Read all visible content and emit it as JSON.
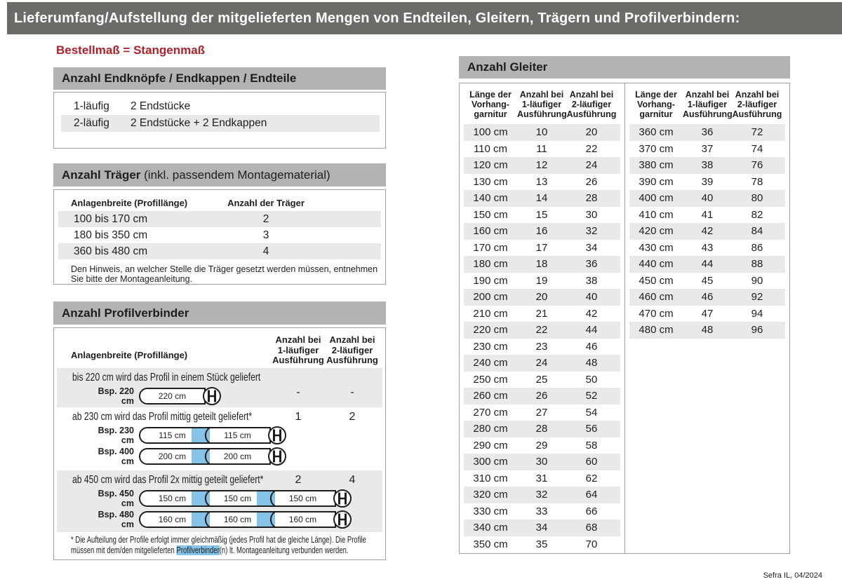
{
  "page": {
    "title": "Lieferumfang/Aufstellung der mitgelieferten Mengen von Endteilen, Gleitern, Trägern und Profilverbindern:",
    "order_note": "Bestellmaß = Stangenmaß",
    "footer": "Sefra IL, 04/2024",
    "colors": {
      "title_bar": "#6b6b68",
      "section_bar": "#b3b3b1",
      "row_stripe": "#e9e9e8",
      "accent_red": "#b11f29",
      "highlight_blue": "#85c3e9"
    }
  },
  "endteile": {
    "title": "Anzahl Endknöpfe / Endkappen / Endteile",
    "rows": [
      {
        "label": "1-läufig",
        "value": "2 Endstücke"
      },
      {
        "label": "2-läufig",
        "value": "2 Endstücke + 2 Endkappen"
      }
    ]
  },
  "traeger": {
    "title_bold": "Anzahl Träger",
    "title_normal": " (inkl. passendem Montagematerial)",
    "col_width": "Anlagenbreite (Profillänge)",
    "col_count": "Anzahl der Träger",
    "rows": [
      {
        "range": "100 bis 170 cm",
        "count": "2"
      },
      {
        "range": "180 bis 350 cm",
        "count": "3"
      },
      {
        "range": "360 bis 480 cm",
        "count": "4"
      }
    ],
    "note": "Den Hinweis, an welcher Stelle die Träger gesetzt werden müssen, entnehmen Sie bitte der Montageanleitung."
  },
  "profilverbinder": {
    "title": "Anzahl Profilverbinder",
    "col_width": "Anlagenbreite (Profillänge)",
    "col_one_run": "Anzahl bei\n1-läufiger\nAusführung",
    "col_two_run": "Anzahl bei\n2-läufiger\nAusführung",
    "rows": [
      {
        "text": "bis 220 cm wird das Profil in einem Stück geliefert",
        "one_run": "-",
        "two_run": "-",
        "examples": [
          {
            "label": "Bsp. 220 cm",
            "segments": [
              "220 cm"
            ]
          }
        ]
      },
      {
        "text": "ab 230 cm wird das Profil mittig geteilt geliefert*",
        "one_run": "1",
        "two_run": "2",
        "examples": [
          {
            "label": "Bsp. 230 cm",
            "segments": [
              "115 cm",
              "115 cm"
            ]
          },
          {
            "label": "Bsp. 400 cm",
            "segments": [
              "200 cm",
              "200 cm"
            ]
          }
        ]
      },
      {
        "text": "ab 450 cm wird das Profil 2x mittig geteilt geliefert*",
        "one_run": "2",
        "two_run": "4",
        "examples": [
          {
            "label": "Bsp. 450 cm",
            "segments": [
              "150 cm",
              "150 cm",
              "150 cm"
            ]
          },
          {
            "label": "Bsp. 480 cm",
            "segments": [
              "160 cm",
              "160 cm",
              "160 cm"
            ]
          }
        ]
      }
    ],
    "footnote_pre": "* Die Aufteilung der Profile erfolgt immer gleichmäßig (jedes Profil hat die gleiche Länge). Die Profile müssen mit dem/den mitgelieferten ",
    "footnote_highlight": "Profilverbinder",
    "footnote_post": "(n) lt. Montageanleitung verbunden werden."
  },
  "gleiter": {
    "title": "Anzahl Gleiter",
    "col_length": "Länge der\nVorhang-\ngarnitur",
    "col_one_run": "Anzahl bei\n1-läufiger\nAusführung",
    "col_two_run": "Anzahl bei\n2-läufiger\nAusführung",
    "left_rows": [
      [
        "100 cm",
        "10",
        "20"
      ],
      [
        "110 cm",
        "11",
        "22"
      ],
      [
        "120 cm",
        "12",
        "24"
      ],
      [
        "130 cm",
        "13",
        "26"
      ],
      [
        "140 cm",
        "14",
        "28"
      ],
      [
        "150 cm",
        "15",
        "30"
      ],
      [
        "160 cm",
        "16",
        "32"
      ],
      [
        "170 cm",
        "17",
        "34"
      ],
      [
        "180 cm",
        "18",
        "36"
      ],
      [
        "190 cm",
        "19",
        "38"
      ],
      [
        "200 cm",
        "20",
        "40"
      ],
      [
        "210 cm",
        "21",
        "42"
      ],
      [
        "220 cm",
        "22",
        "44"
      ],
      [
        "230 cm",
        "23",
        "46"
      ],
      [
        "240 cm",
        "24",
        "48"
      ],
      [
        "250 cm",
        "25",
        "50"
      ],
      [
        "260 cm",
        "26",
        "52"
      ],
      [
        "270 cm",
        "27",
        "54"
      ],
      [
        "280 cm",
        "28",
        "56"
      ],
      [
        "290 cm",
        "29",
        "58"
      ],
      [
        "300 cm",
        "30",
        "60"
      ],
      [
        "310 cm",
        "31",
        "62"
      ],
      [
        "320 cm",
        "32",
        "64"
      ],
      [
        "330 cm",
        "33",
        "66"
      ],
      [
        "340 cm",
        "34",
        "68"
      ],
      [
        "350 cm",
        "35",
        "70"
      ]
    ],
    "right_rows": [
      [
        "360 cm",
        "36",
        "72"
      ],
      [
        "370 cm",
        "37",
        "74"
      ],
      [
        "380 cm",
        "38",
        "76"
      ],
      [
        "390 cm",
        "39",
        "78"
      ],
      [
        "400 cm",
        "40",
        "80"
      ],
      [
        "410 cm",
        "41",
        "82"
      ],
      [
        "420 cm",
        "42",
        "84"
      ],
      [
        "430 cm",
        "43",
        "86"
      ],
      [
        "440 cm",
        "44",
        "88"
      ],
      [
        "450 cm",
        "45",
        "90"
      ],
      [
        "460 cm",
        "46",
        "92"
      ],
      [
        "470 cm",
        "47",
        "94"
      ],
      [
        "480 cm",
        "48",
        "96"
      ]
    ]
  }
}
